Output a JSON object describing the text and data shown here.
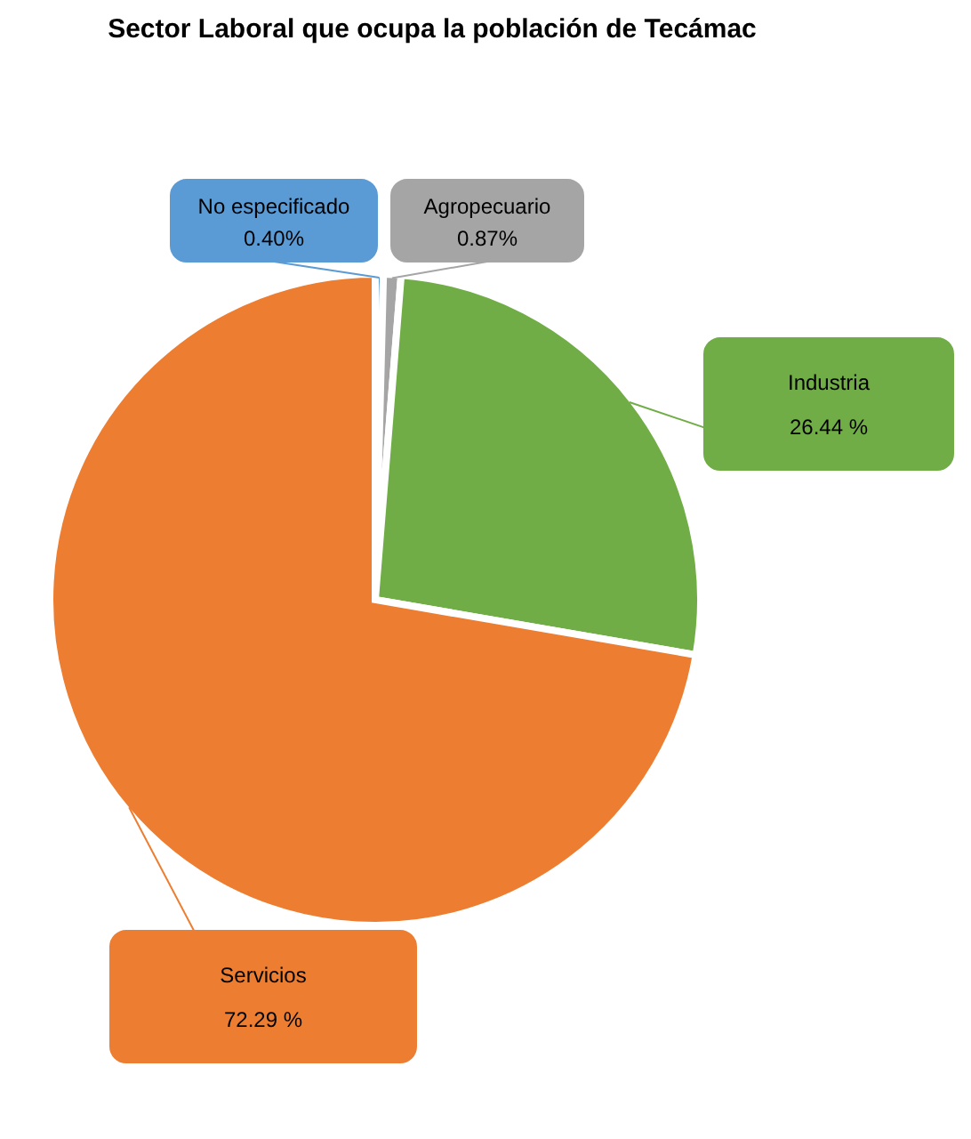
{
  "chart_data": {
    "type": "pie",
    "title": "Sector Laboral que ocupa la población de Tecámac",
    "categories": [
      "No especificado",
      "Agropecuario",
      "Industria",
      "Servicios"
    ],
    "values": [
      0.4,
      0.87,
      26.44,
      72.29
    ],
    "colors": [
      "#5b9bd5",
      "#a5a5a5",
      "#70ad47",
      "#ed7d31"
    ],
    "value_labels": [
      "0.40%",
      "0.87%",
      "26.44 %",
      "72.29 %"
    ],
    "legend": false
  }
}
